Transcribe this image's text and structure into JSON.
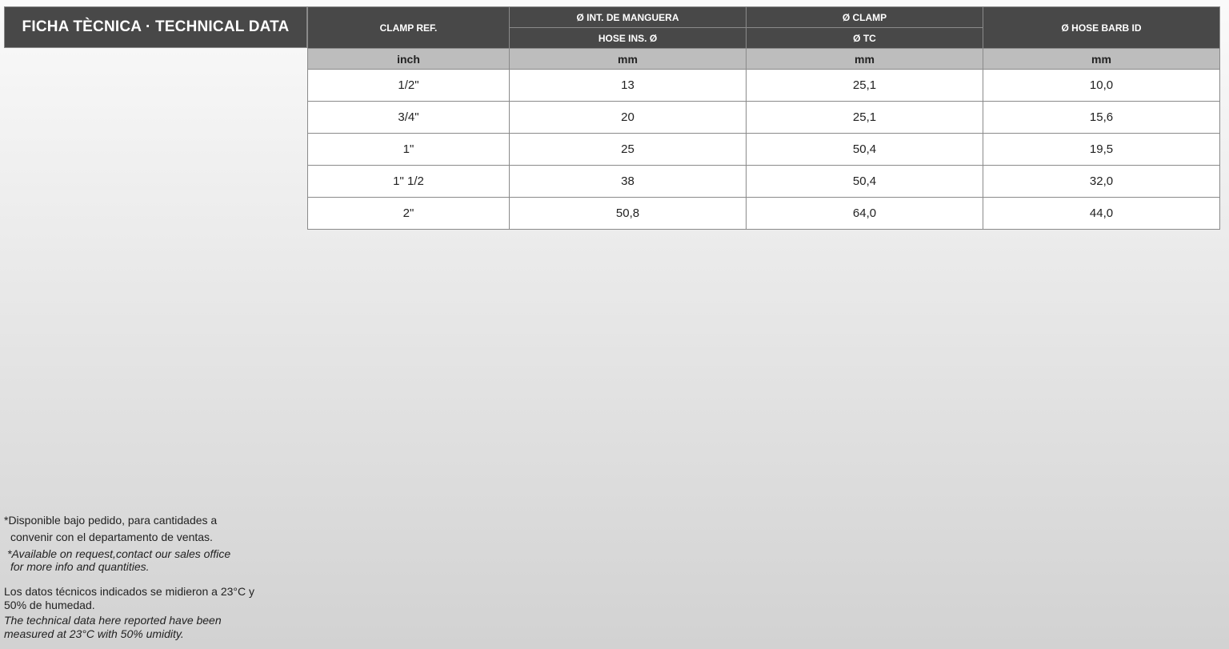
{
  "title": "FICHA TÈCNICA · TECHNICAL DATA",
  "table": {
    "headers": {
      "clamp_ref": "CLAMP REF.",
      "hose_es": "Ø INT. DE MANGUERA",
      "hose_en": "HOSE INS. Ø",
      "clamp_es": "Ø CLAMP",
      "clamp_en": "Ø TC",
      "barb": "Ø HOSE BARB ID"
    },
    "units": [
      "inch",
      "mm",
      "mm",
      "mm"
    ],
    "rows": [
      [
        "1/2\"",
        "13",
        "25,1",
        "10,0"
      ],
      [
        "3/4\"",
        "20",
        "25,1",
        "15,6"
      ],
      [
        "1\"",
        "25",
        "50,4",
        "19,5"
      ],
      [
        "1\" 1/2",
        "38",
        "50,4",
        "32,0"
      ],
      [
        "2\"",
        "50,8",
        "64,0",
        "44,0"
      ]
    ]
  },
  "notes": {
    "avail_es_1": "*Disponible bajo pedido, para cantidades a",
    "avail_es_2": "convenir con el departamento de ventas.",
    "avail_en_1": "*Available on request,contact our sales office",
    "avail_en_2": "for more info and quantities.",
    "measure_es_1": "Los datos técnicos indicados se midieron a 23°C y",
    "measure_es_2": "50% de humedad.",
    "measure_en_1": "The technical data here reported have been",
    "measure_en_2": "measured at 23°C with 50% umidity."
  }
}
